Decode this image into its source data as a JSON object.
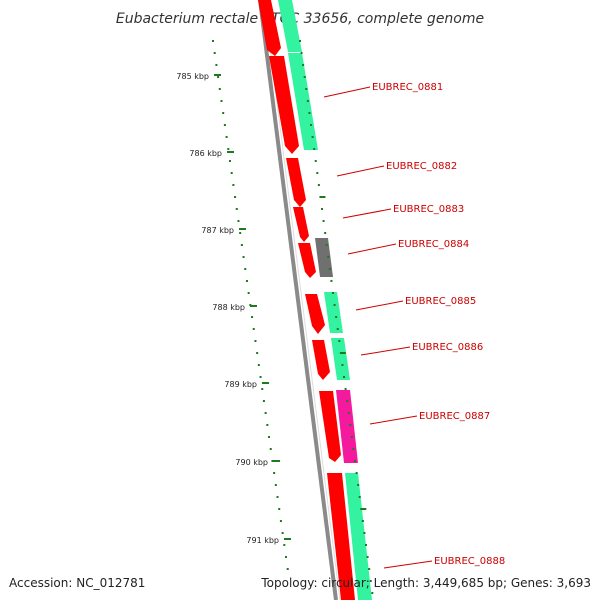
{
  "title": "Eubacterium rectale ATCC 33656, complete genome",
  "footer": {
    "accession": "Accession: NC_012781",
    "summary": "Topology: circular; Length: 3,449,685 bp; Genes: 3,693"
  },
  "scale_ticks": [
    "785 kbp",
    "786 kbp",
    "787 kbp",
    "788 kbp",
    "789 kbp",
    "790 kbp",
    "791 kbp"
  ],
  "gene_labels": [
    "EUBREC_0881",
    "EUBREC_0882",
    "EUBREC_0883",
    "EUBREC_0884",
    "EUBREC_0885",
    "EUBREC_0886",
    "EUBREC_0887",
    "EUBREC_0888"
  ],
  "colors": {
    "cds": "#ff0000",
    "cds_dark": "#d40000",
    "feature_green": "#33f2a0",
    "feature_pink": "#f5199e",
    "feature_gray": "#707070",
    "backbone": "#8a8a8a",
    "scale": "#1f7a1f",
    "label": "#cc0000"
  }
}
